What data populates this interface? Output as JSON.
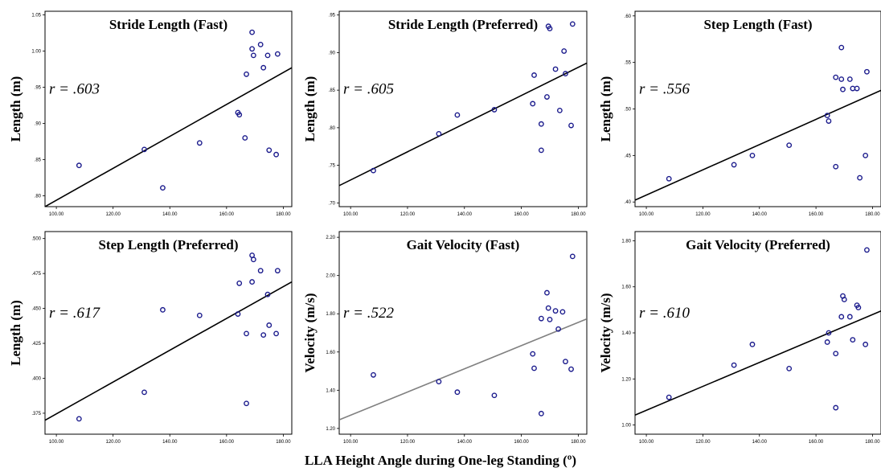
{
  "xlabel": "LLA Height Angle during One-leg Standing (º)",
  "chart_data": [
    {
      "type": "scatter",
      "title": "Stride Length (Fast)",
      "ylabel": "Length (m)",
      "annotation": "r = .603",
      "xlim": [
        96,
        183
      ],
      "xticks": [
        100,
        120,
        140,
        160,
        180
      ],
      "xtick_labels": [
        "100.00",
        "120.00",
        "140.00",
        "160.00",
        "180.00"
      ],
      "ylim": [
        0.785,
        1.055
      ],
      "yticks": [
        0.8,
        0.85,
        0.9,
        0.95,
        1.0,
        1.05
      ],
      "ytick_labels": [
        ".80",
        ".85",
        ".90",
        ".95",
        "1.00",
        "1.05"
      ],
      "points": [
        [
          108,
          0.842
        ],
        [
          131,
          0.864
        ],
        [
          137.5,
          0.811
        ],
        [
          150.5,
          0.873
        ],
        [
          164,
          0.915
        ],
        [
          164.5,
          0.912
        ],
        [
          166.5,
          0.88
        ],
        [
          167,
          0.968
        ],
        [
          169,
          1.026
        ],
        [
          169,
          1.003
        ],
        [
          169.5,
          0.994
        ],
        [
          172,
          1.009
        ],
        [
          173,
          0.977
        ],
        [
          174.5,
          0.994
        ],
        [
          175,
          0.863
        ],
        [
          177.5,
          0.857
        ],
        [
          178,
          0.996
        ]
      ],
      "fit_line": [
        [
          96,
          0.785
        ],
        [
          183,
          0.977
        ]
      ],
      "line_color": "#000000"
    },
    {
      "type": "scatter",
      "title": "Stride Length (Preferred)",
      "ylabel": "Length (m)",
      "annotation": "r = .605",
      "xlim": [
        96,
        183
      ],
      "xticks": [
        100,
        120,
        140,
        160,
        180
      ],
      "xtick_labels": [
        "100.00",
        "120.00",
        "140.00",
        "160.00",
        "180.00"
      ],
      "ylim": [
        0.695,
        0.955
      ],
      "yticks": [
        0.7,
        0.75,
        0.8,
        0.85,
        0.9,
        0.95
      ],
      "ytick_labels": [
        ".70",
        ".75",
        ".80",
        ".85",
        ".90",
        ".95"
      ],
      "points": [
        [
          108,
          0.743
        ],
        [
          131,
          0.792
        ],
        [
          137.5,
          0.817
        ],
        [
          150.5,
          0.824
        ],
        [
          164,
          0.832
        ],
        [
          164.5,
          0.87
        ],
        [
          167,
          0.805
        ],
        [
          167,
          0.77
        ],
        [
          169,
          0.841
        ],
        [
          169.5,
          0.935
        ],
        [
          170,
          0.932
        ],
        [
          172,
          0.878
        ],
        [
          173.5,
          0.823
        ],
        [
          175,
          0.902
        ],
        [
          175.5,
          0.872
        ],
        [
          177.5,
          0.803
        ],
        [
          178,
          0.938
        ]
      ],
      "fit_line": [
        [
          96,
          0.723
        ],
        [
          183,
          0.886
        ]
      ],
      "line_color": "#000000"
    },
    {
      "type": "scatter",
      "title": "Step Length (Fast)",
      "ylabel": "Length (m)",
      "annotation": "r = .556",
      "xlim": [
        96,
        183
      ],
      "xticks": [
        100,
        120,
        140,
        160,
        180
      ],
      "xtick_labels": [
        "100.00",
        "120.00",
        "140.00",
        "160.00",
        "180.00"
      ],
      "ylim": [
        0.395,
        0.605
      ],
      "yticks": [
        0.4,
        0.45,
        0.5,
        0.55,
        0.6
      ],
      "ytick_labels": [
        ".40",
        ".45",
        ".50",
        ".55",
        ".60"
      ],
      "points": [
        [
          108,
          0.425
        ],
        [
          131,
          0.44
        ],
        [
          137.5,
          0.45
        ],
        [
          150.5,
          0.461
        ],
        [
          164,
          0.493
        ],
        [
          164.5,
          0.487
        ],
        [
          167,
          0.438
        ],
        [
          167,
          0.534
        ],
        [
          169,
          0.566
        ],
        [
          169,
          0.532
        ],
        [
          169.5,
          0.521
        ],
        [
          172,
          0.532
        ],
        [
          173,
          0.522
        ],
        [
          174.5,
          0.522
        ],
        [
          175.5,
          0.426
        ],
        [
          177.5,
          0.45
        ],
        [
          178,
          0.54
        ]
      ],
      "fit_line": [
        [
          96,
          0.402
        ],
        [
          183,
          0.52
        ]
      ],
      "line_color": "#000000"
    },
    {
      "type": "scatter",
      "title": "Step Length (Preferred)",
      "ylabel": "Length (m)",
      "annotation": "r = .617",
      "xlim": [
        96,
        183
      ],
      "xticks": [
        100,
        120,
        140,
        160,
        180
      ],
      "xtick_labels": [
        "100.00",
        "120.00",
        "140.00",
        "160.00",
        "180.00"
      ],
      "ylim": [
        0.36,
        0.505
      ],
      "yticks": [
        0.375,
        0.4,
        0.425,
        0.45,
        0.475,
        0.5
      ],
      "ytick_labels": [
        ".375",
        ".400",
        ".425",
        ".450",
        ".475",
        ".500"
      ],
      "points": [
        [
          108,
          0.371
        ],
        [
          131,
          0.39
        ],
        [
          137.5,
          0.449
        ],
        [
          150.5,
          0.445
        ],
        [
          164,
          0.446
        ],
        [
          164.5,
          0.468
        ],
        [
          167,
          0.432
        ],
        [
          167,
          0.382
        ],
        [
          169,
          0.469
        ],
        [
          169,
          0.488
        ],
        [
          169.5,
          0.485
        ],
        [
          172,
          0.477
        ],
        [
          173,
          0.431
        ],
        [
          174.5,
          0.46
        ],
        [
          175,
          0.438
        ],
        [
          177.5,
          0.432
        ],
        [
          178,
          0.477
        ]
      ],
      "fit_line": [
        [
          96,
          0.37
        ],
        [
          183,
          0.469
        ]
      ],
      "line_color": "#000000"
    },
    {
      "type": "scatter",
      "title": "Gait Velocity (Fast)",
      "ylabel": "Velocity (m/s)",
      "annotation": "r = .522",
      "xlim": [
        96,
        183
      ],
      "xticks": [
        100,
        120,
        140,
        160,
        180
      ],
      "xtick_labels": [
        "100.00",
        "120.00",
        "140.00",
        "160.00",
        "180.00"
      ],
      "ylim": [
        1.17,
        2.23
      ],
      "yticks": [
        1.2,
        1.4,
        1.6,
        1.8,
        2.0,
        2.2
      ],
      "ytick_labels": [
        "1.20",
        "1.40",
        "1.60",
        "1.80",
        "2.00",
        "2.20"
      ],
      "points": [
        [
          108,
          1.48
        ],
        [
          131,
          1.445
        ],
        [
          137.5,
          1.39
        ],
        [
          150.5,
          1.373
        ],
        [
          164,
          1.59
        ],
        [
          164.5,
          1.515
        ],
        [
          167,
          1.278
        ],
        [
          167,
          1.775
        ],
        [
          169,
          1.91
        ],
        [
          169.5,
          1.83
        ],
        [
          170,
          1.77
        ],
        [
          172,
          1.815
        ],
        [
          173,
          1.72
        ],
        [
          174.5,
          1.81
        ],
        [
          175.5,
          1.55
        ],
        [
          177.5,
          1.51
        ],
        [
          178,
          2.1
        ]
      ],
      "fit_line": [
        [
          96,
          1.245
        ],
        [
          183,
          1.773
        ]
      ],
      "line_color": "#808080"
    },
    {
      "type": "scatter",
      "title": "Gait Velocity (Preferred)",
      "ylabel": "Velocity (m/s)",
      "annotation": "r = .610",
      "xlim": [
        96,
        183
      ],
      "xticks": [
        100,
        120,
        140,
        160,
        180
      ],
      "xtick_labels": [
        "100.00",
        "120.00",
        "140.00",
        "160.00",
        "180.00"
      ],
      "ylim": [
        0.96,
        1.84
      ],
      "yticks": [
        1.0,
        1.2,
        1.4,
        1.6,
        1.8
      ],
      "ytick_labels": [
        "1.00",
        "1.20",
        "1.40",
        "1.60",
        "1.80"
      ],
      "points": [
        [
          108,
          1.12
        ],
        [
          131,
          1.26
        ],
        [
          137.5,
          1.35
        ],
        [
          150.5,
          1.245
        ],
        [
          164,
          1.36
        ],
        [
          164.5,
          1.4
        ],
        [
          167,
          1.31
        ],
        [
          167,
          1.075
        ],
        [
          169,
          1.47
        ],
        [
          169.5,
          1.56
        ],
        [
          170,
          1.545
        ],
        [
          172,
          1.47
        ],
        [
          173,
          1.37
        ],
        [
          174.5,
          1.52
        ],
        [
          175,
          1.51
        ],
        [
          177.5,
          1.35
        ],
        [
          178,
          1.76
        ]
      ],
      "fit_line": [
        [
          96,
          1.043
        ],
        [
          183,
          1.495
        ]
      ],
      "line_color": "#000000"
    }
  ]
}
